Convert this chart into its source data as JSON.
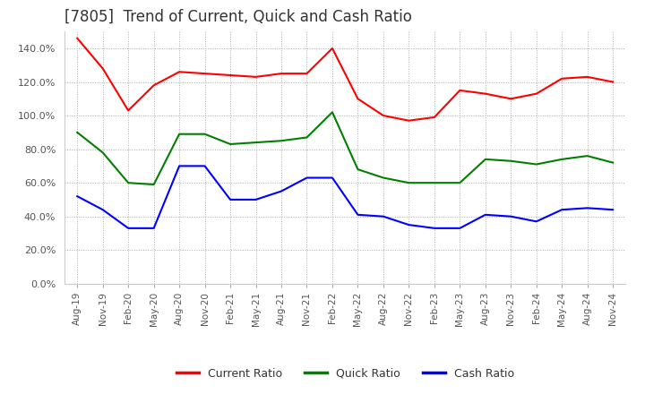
{
  "title": "[7805]  Trend of Current, Quick and Cash Ratio",
  "x_labels": [
    "Aug-19",
    "Nov-19",
    "Feb-20",
    "May-20",
    "Aug-20",
    "Nov-20",
    "Feb-21",
    "May-21",
    "Aug-21",
    "Nov-21",
    "Feb-22",
    "May-22",
    "Aug-22",
    "Nov-22",
    "Feb-23",
    "May-23",
    "Aug-23",
    "Nov-23",
    "Feb-24",
    "May-24",
    "Aug-24",
    "Nov-24"
  ],
  "current_ratio": [
    1.46,
    1.28,
    1.03,
    1.18,
    1.26,
    1.25,
    1.24,
    1.23,
    1.25,
    1.25,
    1.4,
    1.1,
    1.0,
    0.97,
    0.99,
    1.15,
    1.13,
    1.1,
    1.13,
    1.22,
    1.23,
    1.2
  ],
  "quick_ratio": [
    0.9,
    0.78,
    0.6,
    0.59,
    0.89,
    0.89,
    0.83,
    0.84,
    0.85,
    0.87,
    1.02,
    0.68,
    0.63,
    0.6,
    0.6,
    0.6,
    0.74,
    0.73,
    0.71,
    0.74,
    0.76,
    0.72
  ],
  "cash_ratio": [
    0.52,
    0.44,
    0.33,
    0.33,
    0.7,
    0.7,
    0.5,
    0.5,
    0.55,
    0.63,
    0.63,
    0.41,
    0.4,
    0.35,
    0.33,
    0.33,
    0.41,
    0.4,
    0.37,
    0.44,
    0.45,
    0.44
  ],
  "current_color": "#ff0000",
  "quick_color": "#008000",
  "cash_color": "#0000ff",
  "ylim": [
    0.0,
    1.5
  ],
  "yticks": [
    0.0,
    0.2,
    0.4,
    0.6,
    0.8,
    1.0,
    1.2,
    1.4
  ],
  "background_color": "#ffffff",
  "title_fontsize": 12,
  "grid_color": "#aaaaaa",
  "grid_style": ":"
}
